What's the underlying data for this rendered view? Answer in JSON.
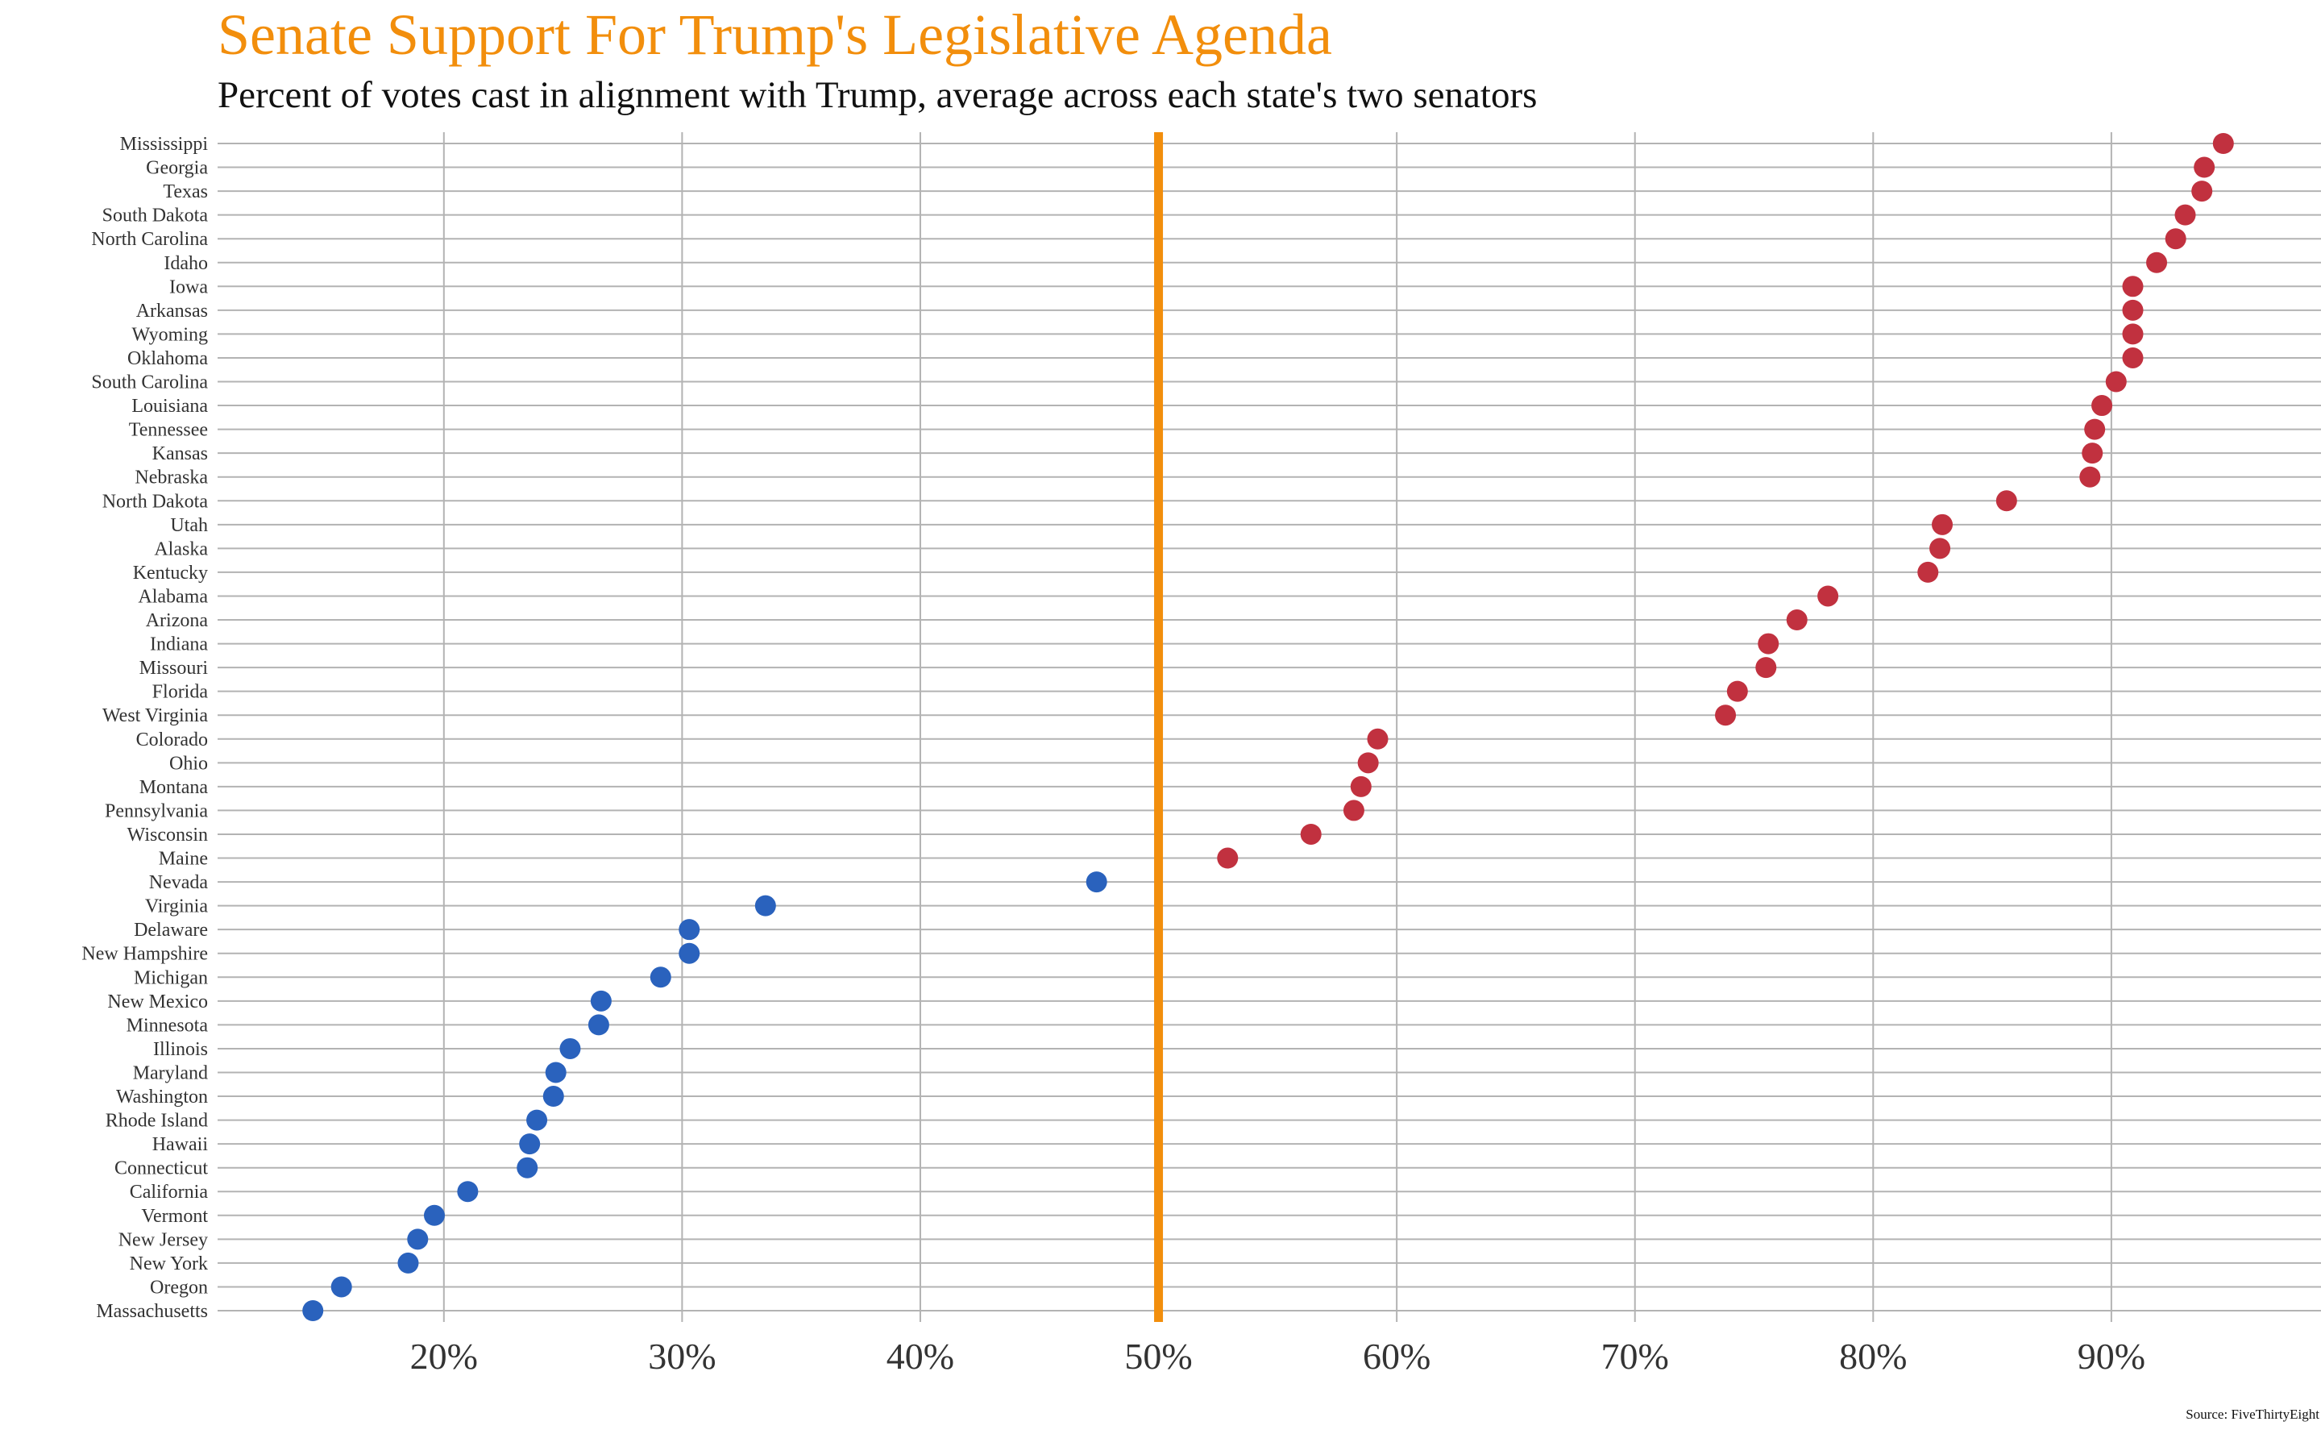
{
  "chart_data": {
    "type": "scatter",
    "title": "Senate Support For Trump's Legislative Agenda",
    "subtitle": "Percent of votes cast in alignment with Trump, average across each state's two senators",
    "source": "Source: FiveThirtyEight",
    "xlabel": "",
    "ylabel": "",
    "xlim": [
      10.5,
      98.8
    ],
    "xticks": [
      20,
      30,
      40,
      50,
      60,
      70,
      80,
      90
    ],
    "xtick_labels": [
      "20%",
      "30%",
      "40%",
      "50%",
      "60%",
      "70%",
      "80%",
      "90%"
    ],
    "reference_line": {
      "x": 50,
      "color": "#f28e0c"
    },
    "grid": true,
    "colors": {
      "republican": "#c1313f",
      "democrat": "#2a62bd",
      "grid": "#b3b3b3",
      "reference": "#f28e0c"
    },
    "points": [
      {
        "state": "Mississippi",
        "value": 94.7,
        "group": "republican"
      },
      {
        "state": "Georgia",
        "value": 93.9,
        "group": "republican"
      },
      {
        "state": "Texas",
        "value": 93.8,
        "group": "republican"
      },
      {
        "state": "South Dakota",
        "value": 93.1,
        "group": "republican"
      },
      {
        "state": "North Carolina",
        "value": 92.7,
        "group": "republican"
      },
      {
        "state": "Idaho",
        "value": 91.9,
        "group": "republican"
      },
      {
        "state": "Iowa",
        "value": 90.9,
        "group": "republican"
      },
      {
        "state": "Arkansas",
        "value": 90.9,
        "group": "republican"
      },
      {
        "state": "Wyoming",
        "value": 90.9,
        "group": "republican"
      },
      {
        "state": "Oklahoma",
        "value": 90.9,
        "group": "republican"
      },
      {
        "state": "South Carolina",
        "value": 90.2,
        "group": "republican"
      },
      {
        "state": "Louisiana",
        "value": 89.6,
        "group": "republican"
      },
      {
        "state": "Tennessee",
        "value": 89.3,
        "group": "republican"
      },
      {
        "state": "Kansas",
        "value": 89.2,
        "group": "republican"
      },
      {
        "state": "Nebraska",
        "value": 89.1,
        "group": "republican"
      },
      {
        "state": "North Dakota",
        "value": 85.6,
        "group": "republican"
      },
      {
        "state": "Utah",
        "value": 82.9,
        "group": "republican"
      },
      {
        "state": "Alaska",
        "value": 82.8,
        "group": "republican"
      },
      {
        "state": "Kentucky",
        "value": 82.3,
        "group": "republican"
      },
      {
        "state": "Alabama",
        "value": 78.1,
        "group": "republican"
      },
      {
        "state": "Arizona",
        "value": 76.8,
        "group": "republican"
      },
      {
        "state": "Indiana",
        "value": 75.6,
        "group": "republican"
      },
      {
        "state": "Missouri",
        "value": 75.5,
        "group": "republican"
      },
      {
        "state": "Florida",
        "value": 74.3,
        "group": "republican"
      },
      {
        "state": "West Virginia",
        "value": 73.8,
        "group": "republican"
      },
      {
        "state": "Colorado",
        "value": 59.2,
        "group": "republican"
      },
      {
        "state": "Ohio",
        "value": 58.8,
        "group": "republican"
      },
      {
        "state": "Montana",
        "value": 58.5,
        "group": "republican"
      },
      {
        "state": "Pennsylvania",
        "value": 58.2,
        "group": "republican"
      },
      {
        "state": "Wisconsin",
        "value": 56.4,
        "group": "republican"
      },
      {
        "state": "Maine",
        "value": 52.9,
        "group": "republican"
      },
      {
        "state": "Nevada",
        "value": 47.4,
        "group": "democrat"
      },
      {
        "state": "Virginia",
        "value": 33.5,
        "group": "democrat"
      },
      {
        "state": "Delaware",
        "value": 30.3,
        "group": "democrat"
      },
      {
        "state": "New Hampshire",
        "value": 30.3,
        "group": "democrat"
      },
      {
        "state": "Michigan",
        "value": 29.1,
        "group": "democrat"
      },
      {
        "state": "New Mexico",
        "value": 26.6,
        "group": "democrat"
      },
      {
        "state": "Minnesota",
        "value": 26.5,
        "group": "democrat"
      },
      {
        "state": "Illinois",
        "value": 25.3,
        "group": "democrat"
      },
      {
        "state": "Maryland",
        "value": 24.7,
        "group": "democrat"
      },
      {
        "state": "Washington",
        "value": 24.6,
        "group": "democrat"
      },
      {
        "state": "Rhode Island",
        "value": 23.9,
        "group": "democrat"
      },
      {
        "state": "Hawaii",
        "value": 23.6,
        "group": "democrat"
      },
      {
        "state": "Connecticut",
        "value": 23.5,
        "group": "democrat"
      },
      {
        "state": "California",
        "value": 21.0,
        "group": "democrat"
      },
      {
        "state": "Vermont",
        "value": 19.6,
        "group": "democrat"
      },
      {
        "state": "New Jersey",
        "value": 18.9,
        "group": "democrat"
      },
      {
        "state": "New York",
        "value": 18.5,
        "group": "democrat"
      },
      {
        "state": "Oregon",
        "value": 15.7,
        "group": "democrat"
      },
      {
        "state": "Massachusetts",
        "value": 14.5,
        "group": "democrat"
      }
    ]
  }
}
